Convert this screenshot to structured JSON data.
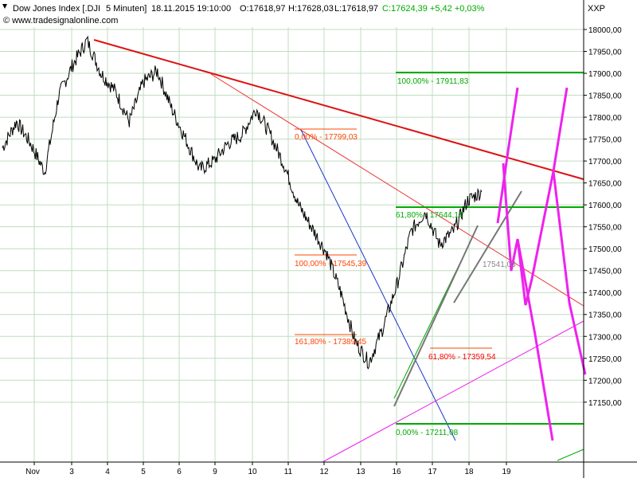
{
  "header": {
    "instrument": "Dow Jones Index [.DJI",
    "period": "5 Minuten]",
    "datetime": "18.11.2015 19:10:00",
    "open": "O:17618,97",
    "high": "H:17628,03",
    "low": "L:17618,97",
    "change": "C:17624,39 +5,42 +0,03%",
    "copyright": "© www.tradesignalonline.com",
    "axis_title": "XXP"
  },
  "chart_data": {
    "type": "line",
    "title": "Dow Jones Index [.DJI 5 Minuten]",
    "xlabel": "",
    "ylabel": "",
    "ylim": [
      17130,
      18040
    ],
    "x_ticks": [
      "Nov",
      "3",
      "4",
      "5",
      "6",
      "9",
      "10",
      "11",
      "12",
      "13",
      "16",
      "17",
      "18",
      "19"
    ],
    "y_ticks": [
      "18000,00",
      "17950,00",
      "17900,00",
      "17850,00",
      "17800,00",
      "17750,00",
      "17700,00",
      "17650,00",
      "17600,00",
      "17550,00",
      "17500,00",
      "17450,00",
      "17400,00",
      "17350,00",
      "17300,00",
      "17250,00",
      "17200,00",
      "17150,00"
    ],
    "grid": true,
    "series": [
      {
        "values": [
          [
            0,
            17730
          ],
          [
            1,
            17790
          ],
          [
            2,
            17740
          ],
          [
            3,
            17675
          ],
          [
            4,
            17850
          ],
          [
            5,
            17920
          ],
          [
            6,
            17975
          ],
          [
            7,
            17900
          ],
          [
            8,
            17860
          ],
          [
            9,
            17790
          ],
          [
            10,
            17880
          ],
          [
            11,
            17905
          ],
          [
            12,
            17820
          ],
          [
            13,
            17750
          ],
          [
            14,
            17680
          ],
          [
            15,
            17700
          ],
          [
            16,
            17740
          ],
          [
            17,
            17760
          ],
          [
            18,
            17820
          ],
          [
            19,
            17760
          ],
          [
            20,
            17690
          ],
          [
            21,
            17600
          ],
          [
            22,
            17545
          ],
          [
            23,
            17490
          ],
          [
            24,
            17400
          ],
          [
            25,
            17290
          ],
          [
            26,
            17240
          ],
          [
            27,
            17320
          ],
          [
            28,
            17420
          ],
          [
            29,
            17540
          ],
          [
            30,
            17585
          ],
          [
            31,
            17510
          ],
          [
            32,
            17540
          ],
          [
            33,
            17610
          ],
          [
            34,
            17630
          ]
        ]
      }
    ],
    "fib_levels": [
      {
        "label": "100,00% - 17911,83",
        "color": "#00aa00"
      },
      {
        "label": "61,80% - 17644,14",
        "color": "#00aa00"
      },
      {
        "label": "0,00% - 17211,08",
        "color": "#00aa00"
      },
      {
        "label": "0,00% - 17799,03",
        "color": "#ff4400"
      },
      {
        "label": "100,00% - 17545,39",
        "color": "#ff4400"
      },
      {
        "label": "161,80% - 17389,45",
        "color": "#ff4400"
      },
      {
        "label": "61,80% - 17359,54",
        "color": "#ff0000"
      },
      {
        "label": "17541,03",
        "color": "#888888"
      }
    ]
  },
  "colors": {
    "price": "#000000",
    "downtrend": "#dd1111",
    "downtrend_thin": "#ee3333",
    "blue_line": "#1a33cc",
    "magenta": "#ee22ee",
    "green": "#00aa00",
    "grid": "#c0dcc0",
    "gray": "#777777"
  }
}
